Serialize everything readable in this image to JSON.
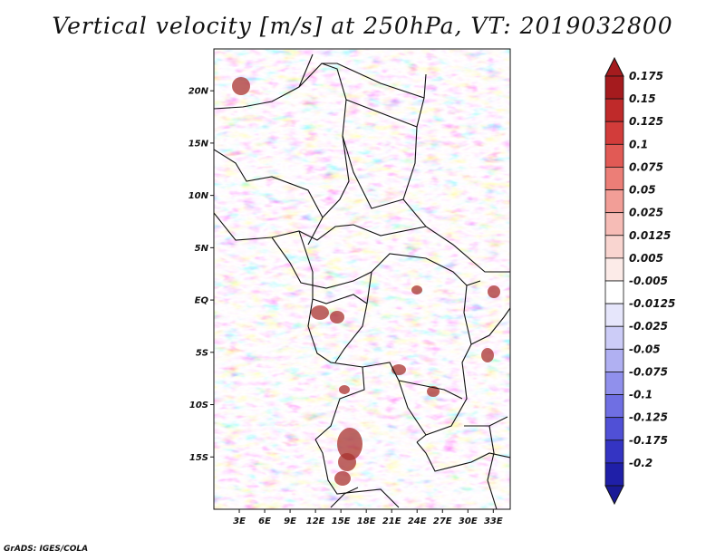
{
  "title": "Vertical velocity [m/s] at 250hPa, VT: 2019032800",
  "credit": "GrADS: IGES/COLA",
  "map": {
    "lon_range": [
      0,
      35
    ],
    "lat_range": [
      -20,
      24
    ],
    "lat_ticks": [
      {
        "value": 20,
        "label": "20N"
      },
      {
        "value": 15,
        "label": "15N"
      },
      {
        "value": 10,
        "label": "10N"
      },
      {
        "value": 5,
        "label": "5N"
      },
      {
        "value": 0,
        "label": "EQ"
      },
      {
        "value": -5,
        "label": "5S"
      },
      {
        "value": -10,
        "label": "10S"
      },
      {
        "value": -15,
        "label": "15S"
      }
    ],
    "lon_ticks": [
      {
        "value": 3,
        "label": "3E"
      },
      {
        "value": 6,
        "label": "6E"
      },
      {
        "value": 9,
        "label": "9E"
      },
      {
        "value": 12,
        "label": "12E"
      },
      {
        "value": 15,
        "label": "15E"
      },
      {
        "value": 18,
        "label": "18E"
      },
      {
        "value": 21,
        "label": "21E"
      },
      {
        "value": 24,
        "label": "24E"
      },
      {
        "value": 27,
        "label": "27E"
      },
      {
        "value": 30,
        "label": "30E"
      },
      {
        "value": 33,
        "label": "33E"
      }
    ]
  },
  "colorbar": [
    {
      "label": "0.175",
      "color": "#a51b1e"
    },
    {
      "label": "0.15",
      "color": "#bf2a2a"
    },
    {
      "label": "0.125",
      "color": "#d23c3a"
    },
    {
      "label": "0.1",
      "color": "#e15a55"
    },
    {
      "label": "0.075",
      "color": "#ec7e77"
    },
    {
      "label": "0.05",
      "color": "#f29e97"
    },
    {
      "label": "0.025",
      "color": "#f6bcb6"
    },
    {
      "label": "0.0125",
      "color": "#f9d5d0"
    },
    {
      "label": "0.005",
      "color": "#fcebe8"
    },
    {
      "label": "-0.005",
      "color": "#ffffff"
    },
    {
      "label": "-0.0125",
      "color": "#e6e6fb"
    },
    {
      "label": "-0.025",
      "color": "#ccccf7"
    },
    {
      "label": "-0.05",
      "color": "#b0b0f2"
    },
    {
      "label": "-0.075",
      "color": "#9090ec"
    },
    {
      "label": "-0.1",
      "color": "#6f6fe3"
    },
    {
      "label": "-0.125",
      "color": "#5050d6"
    },
    {
      "label": "-0.175",
      "color": "#3434c3"
    },
    {
      "label": "-0.2",
      "color": "#1f1fa8"
    }
  ],
  "colorbar_ends": {
    "top": "#a51b1e",
    "bottom": "#1a1a96"
  }
}
